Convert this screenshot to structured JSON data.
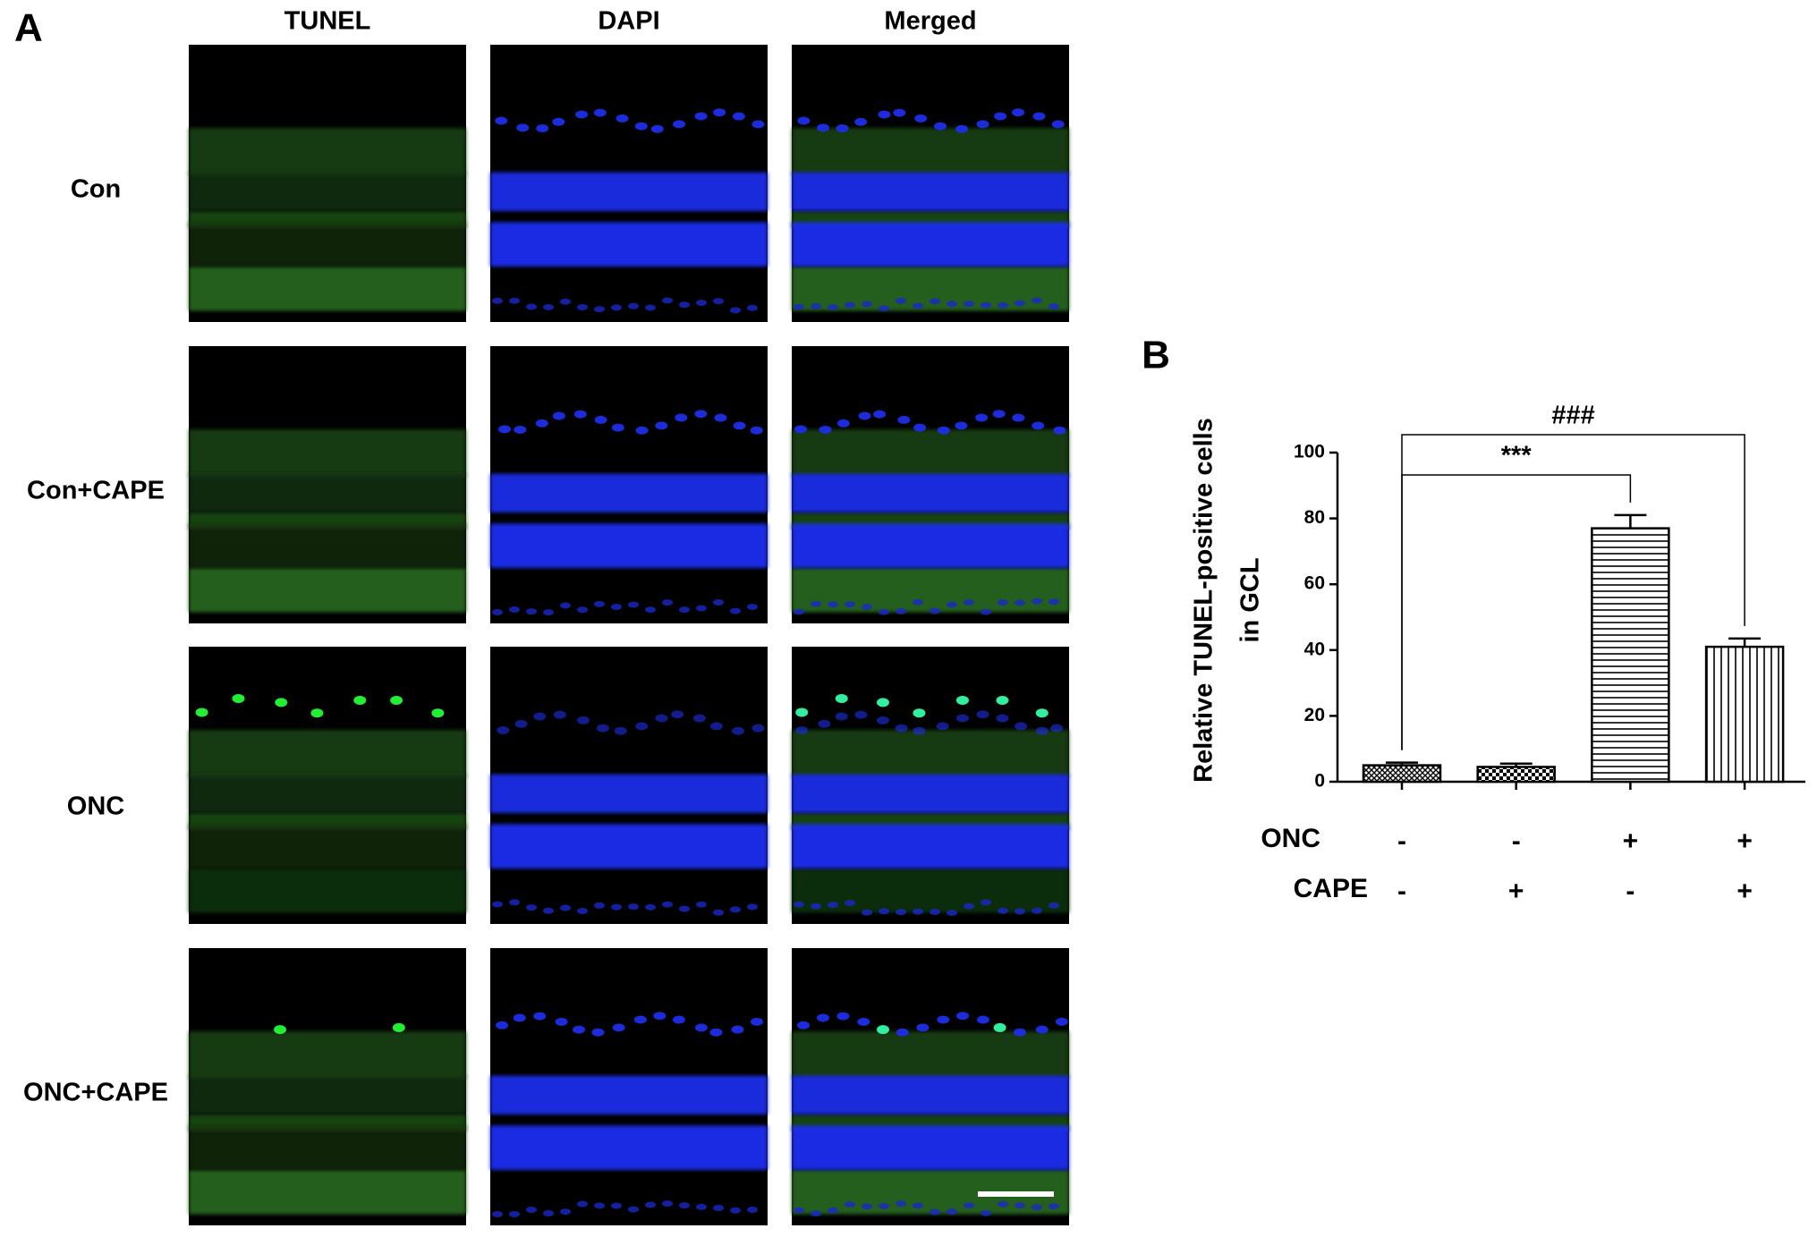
{
  "panel_a": {
    "label": "A",
    "columns": [
      "TUNEL",
      "DAPI",
      "Merged"
    ],
    "rows": [
      "Con",
      "Con+CAPE",
      "ONC",
      "ONC+CAPE"
    ]
  },
  "chart_data": {
    "type": "bar",
    "panel_label": "B",
    "ylabel": [
      "Relative TUNEL-positive cells",
      "in GCL"
    ],
    "factors": [
      {
        "name": "ONC",
        "levels": [
          "-",
          "-",
          "+",
          "+"
        ]
      },
      {
        "name": "CAPE",
        "levels": [
          "-",
          "+",
          "-",
          "+"
        ]
      }
    ],
    "values": [
      5,
      4.5,
      77,
      41
    ],
    "errors": [
      0.8,
      1,
      4,
      2.5
    ],
    "patterns": [
      "crosshatch",
      "checker",
      "horizontal",
      "vertical"
    ],
    "color": "#000000",
    "ylim": [
      0,
      100
    ],
    "yticks": [
      0,
      20,
      40,
      60,
      80,
      100
    ],
    "annotations": [
      {
        "text": "***",
        "from": 0,
        "to": 2
      },
      {
        "text": "###",
        "from": 0,
        "to": 3
      }
    ]
  }
}
